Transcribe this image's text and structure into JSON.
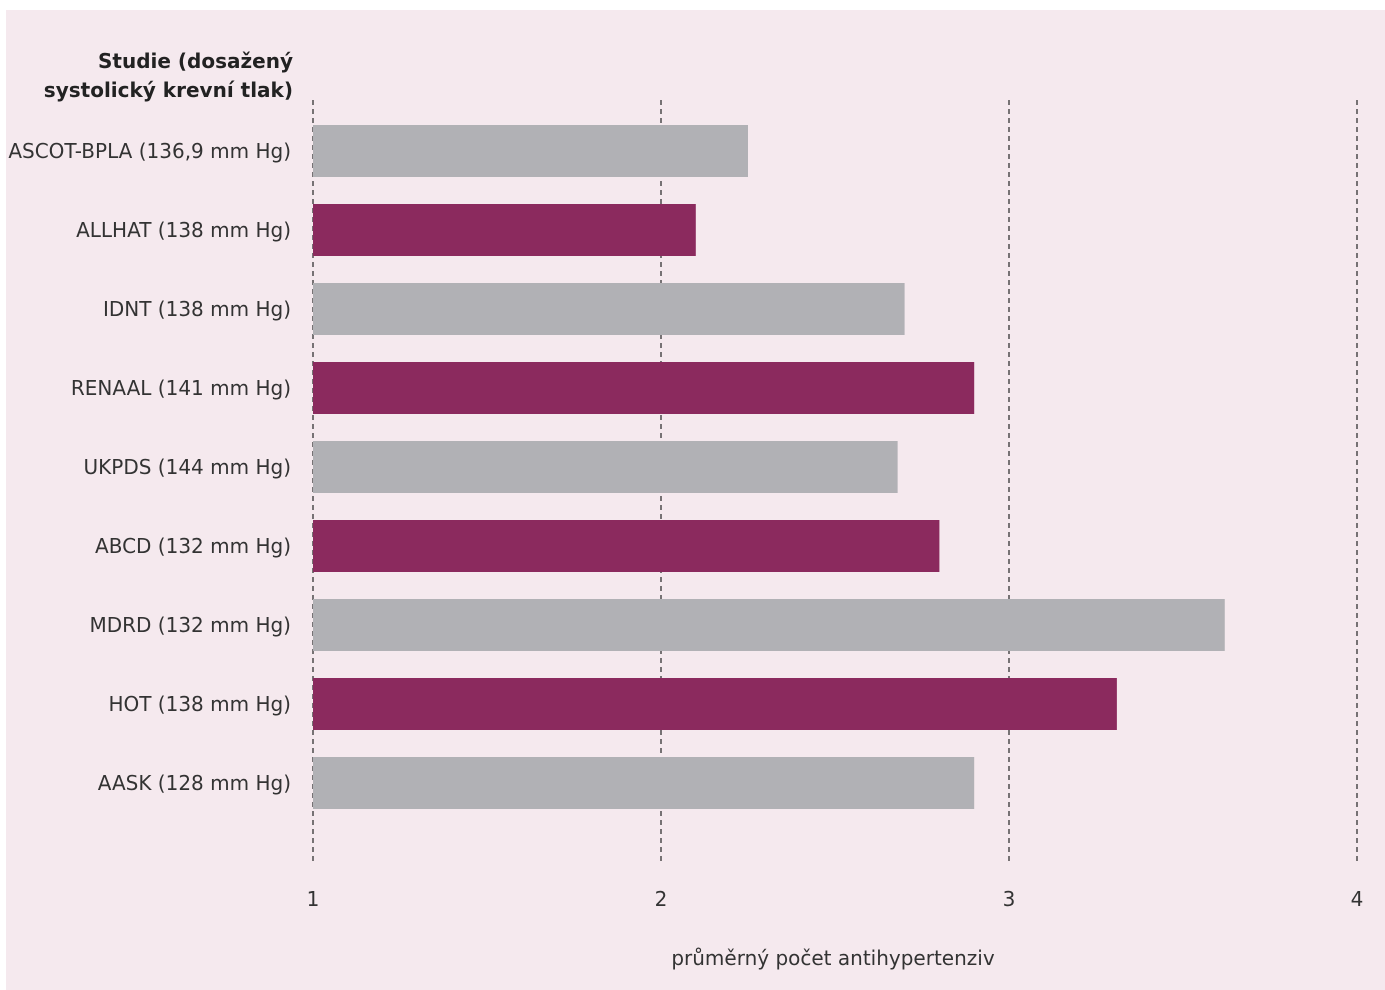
{
  "chart_data": {
    "type": "bar",
    "orientation": "horizontal",
    "header": [
      "Studie (dosažený",
      "systolický krevní tlak)"
    ],
    "xlabel": "průměrný počet antihypertenziv",
    "xlim": [
      1,
      4
    ],
    "xticks": [
      1,
      2,
      3,
      4
    ],
    "xtick_labels": [
      "1",
      "2",
      "3",
      "4"
    ],
    "grid": "vertical dashed",
    "categories": [
      "ASCOT-BPLA (136,9 mm Hg)",
      "ALLHAT (138 mm Hg)",
      "IDNT (138 mm Hg)",
      "RENAAL (141 mm Hg)",
      "UKPDS (144 mm Hg)",
      "ABCD (132 mm Hg)",
      "MDRD (132 mm Hg)",
      "HOT (138 mm Hg)",
      "AASK (128 mm Hg)"
    ],
    "values": [
      2.25,
      2.1,
      2.7,
      2.9,
      2.68,
      2.8,
      3.62,
      3.31,
      2.9
    ],
    "colors": [
      "#b1b1b5",
      "#8b2a5e",
      "#b1b1b5",
      "#8b2a5e",
      "#b1b1b5",
      "#8b2a5e",
      "#b1b1b5",
      "#8b2a5e",
      "#b1b1b5"
    ],
    "background": "#f5e9ee"
  }
}
